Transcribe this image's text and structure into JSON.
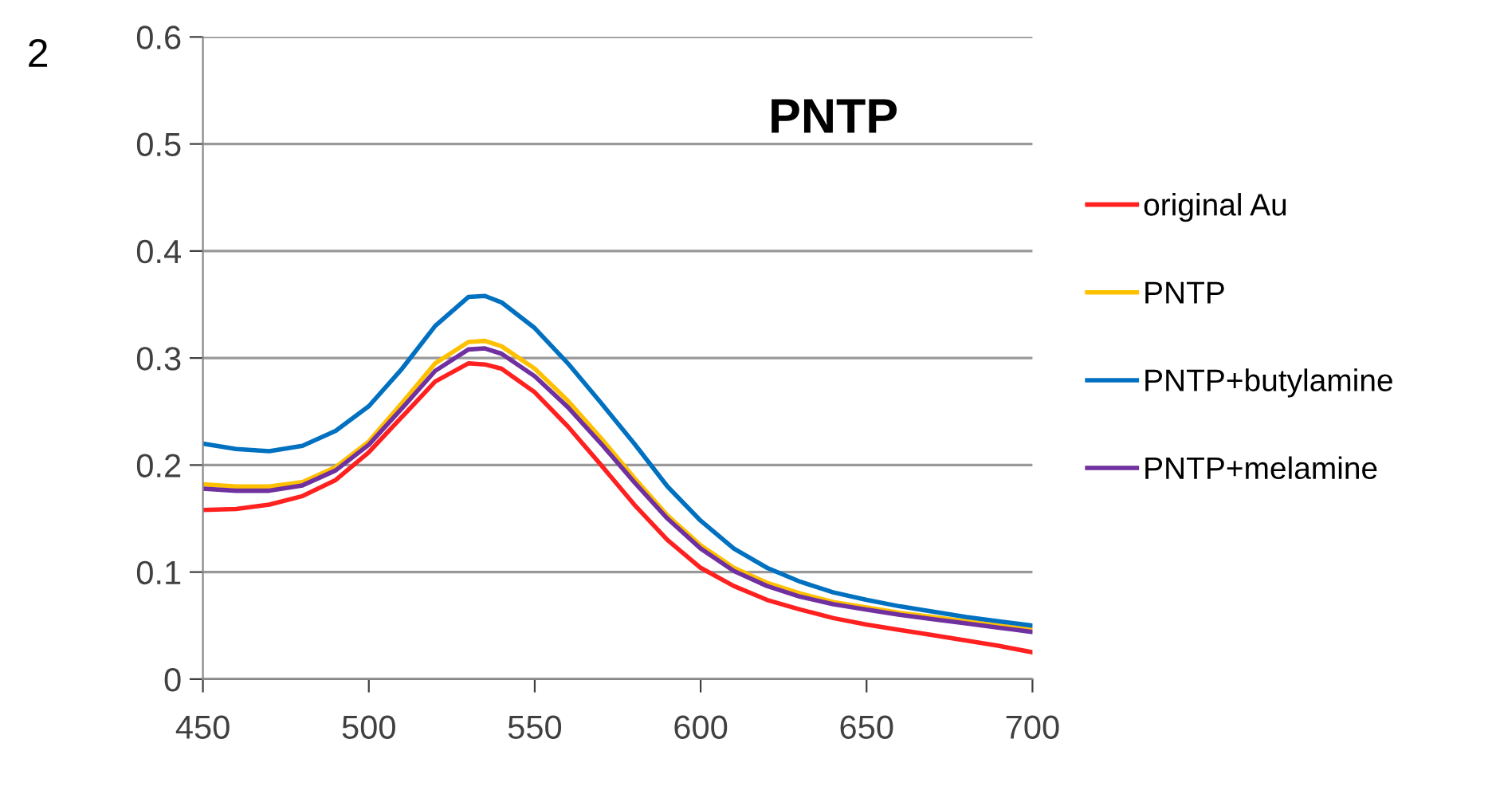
{
  "chart_data": {
    "type": "line",
    "title": "PNTP",
    "annotations": [
      "2"
    ],
    "x": [
      450,
      460,
      470,
      480,
      490,
      500,
      510,
      520,
      530,
      535,
      540,
      550,
      560,
      570,
      580,
      590,
      600,
      610,
      620,
      630,
      640,
      650,
      660,
      670,
      680,
      690,
      700
    ],
    "series": [
      {
        "name": "original Au",
        "color": "#ff2020",
        "values": [
          0.158,
          0.159,
          0.163,
          0.171,
          0.186,
          0.212,
          0.245,
          0.278,
          0.295,
          0.294,
          0.29,
          0.268,
          0.236,
          0.2,
          0.163,
          0.13,
          0.104,
          0.087,
          0.074,
          0.065,
          0.057,
          0.051,
          0.046,
          0.041,
          0.036,
          0.031,
          0.025
        ]
      },
      {
        "name": "PNTP",
        "color": "#ffc000",
        "values": [
          0.182,
          0.18,
          0.18,
          0.184,
          0.198,
          0.222,
          0.258,
          0.295,
          0.315,
          0.316,
          0.311,
          0.29,
          0.26,
          0.225,
          0.188,
          0.153,
          0.125,
          0.104,
          0.09,
          0.08,
          0.072,
          0.067,
          0.062,
          0.058,
          0.054,
          0.05,
          0.046
        ]
      },
      {
        "name": "PNTP+butylamine",
        "color": "#0070c0",
        "values": [
          0.22,
          0.215,
          0.213,
          0.218,
          0.232,
          0.255,
          0.29,
          0.33,
          0.357,
          0.358,
          0.352,
          0.328,
          0.295,
          0.258,
          0.22,
          0.18,
          0.148,
          0.122,
          0.104,
          0.091,
          0.081,
          0.074,
          0.068,
          0.063,
          0.058,
          0.054,
          0.05
        ]
      },
      {
        "name": "PNTP+melamine",
        "color": "#7030a0",
        "values": [
          0.178,
          0.176,
          0.176,
          0.181,
          0.195,
          0.219,
          0.253,
          0.288,
          0.308,
          0.309,
          0.304,
          0.283,
          0.254,
          0.22,
          0.184,
          0.15,
          0.122,
          0.101,
          0.087,
          0.077,
          0.07,
          0.065,
          0.06,
          0.056,
          0.052,
          0.048,
          0.044
        ]
      }
    ],
    "xlim": [
      450,
      700
    ],
    "xticks": [
      450,
      500,
      550,
      600,
      650,
      700
    ],
    "ylim": [
      0,
      0.6
    ],
    "yticks": [
      0,
      0.1,
      0.2,
      0.3,
      0.4,
      0.5,
      0.6
    ],
    "grid": "y",
    "legend": "right"
  }
}
